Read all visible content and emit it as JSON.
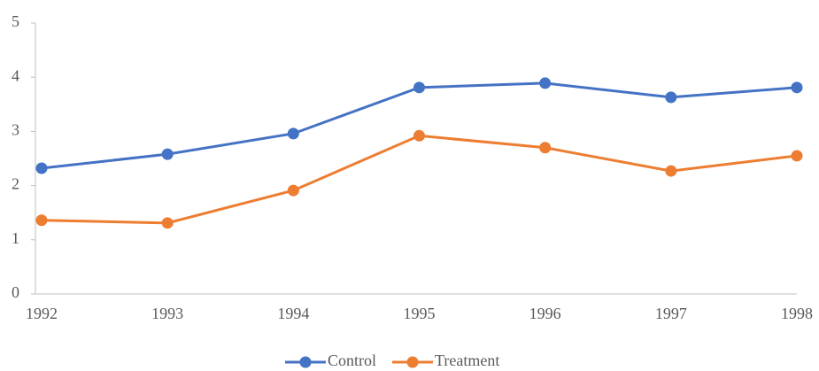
{
  "chart_data": {
    "type": "line",
    "x": [
      1992,
      1993,
      1994,
      1995,
      1996,
      1997,
      1998
    ],
    "series": [
      {
        "name": "Control",
        "color": "#4472c4",
        "values": [
          2.32,
          2.58,
          2.96,
          3.81,
          3.89,
          3.63,
          3.81
        ]
      },
      {
        "name": "Treatment",
        "color": "#ed7d31",
        "values": [
          1.36,
          1.31,
          1.91,
          2.92,
          2.7,
          2.27,
          2.55
        ]
      }
    ],
    "xlim": [
      1992,
      1998
    ],
    "xticks": [
      1992,
      1993,
      1994,
      1995,
      1996,
      1997,
      1998
    ],
    "ylim": [
      0,
      5
    ],
    "yticks": [
      0,
      1,
      2,
      3,
      4,
      5
    ],
    "grid": false,
    "legend": "bottom"
  }
}
